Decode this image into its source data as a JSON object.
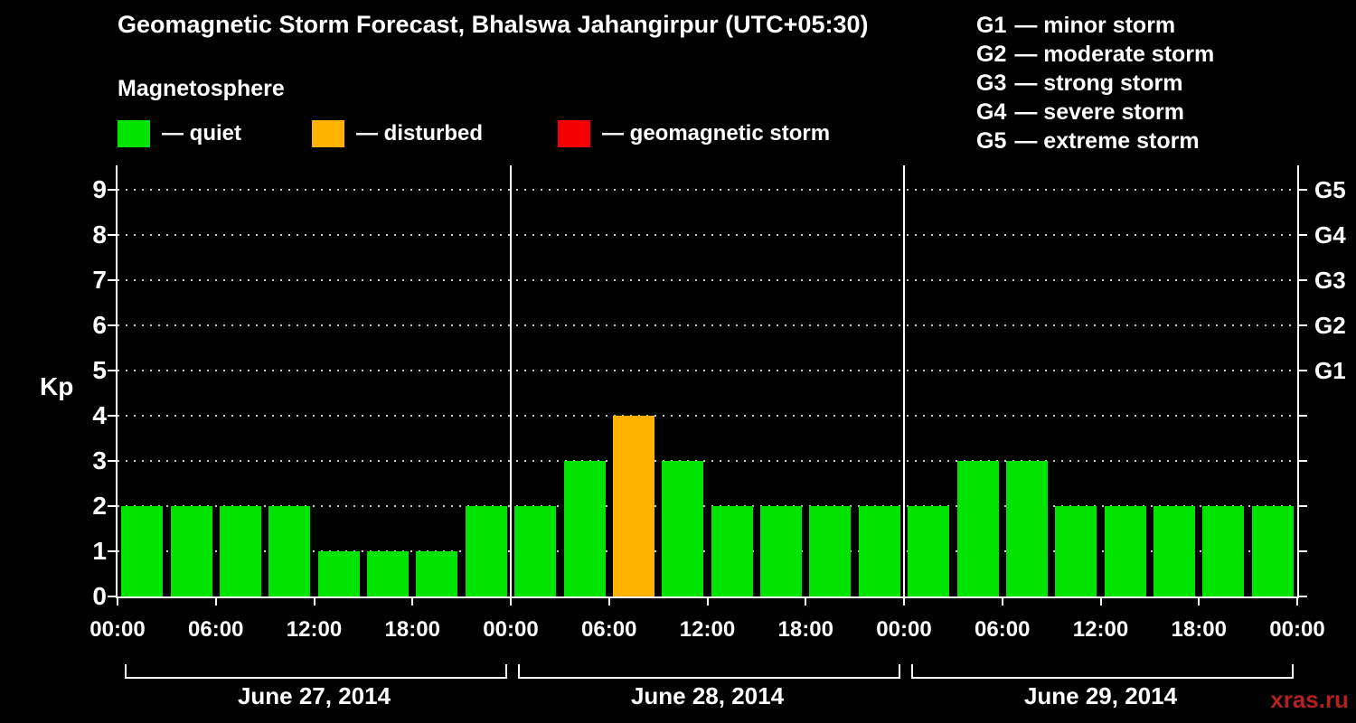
{
  "title": "Geomagnetic Storm Forecast, Bhalswa Jahangirpur (UTC+05:30)",
  "magnetosphere": {
    "heading": "Magnetosphere",
    "items": [
      {
        "name": "quiet",
        "label": "— quiet",
        "color": "#00e400"
      },
      {
        "name": "disturbed",
        "label": "— disturbed",
        "color": "#ffb300"
      },
      {
        "name": "storm",
        "label": "— geomagnetic storm",
        "color": "#f40000"
      }
    ]
  },
  "g_scale_legend": [
    {
      "code": "G1",
      "label": "— minor storm"
    },
    {
      "code": "G2",
      "label": "— moderate storm"
    },
    {
      "code": "G3",
      "label": "— strong storm"
    },
    {
      "code": "G4",
      "label": "— severe storm"
    },
    {
      "code": "G5",
      "label": "— extreme storm"
    }
  ],
  "watermark": "xras.ru",
  "colors": {
    "watermark": "#b22222",
    "axis": "#ffffff",
    "background": "#000000"
  },
  "chart_data": {
    "type": "bar",
    "title": "Geomagnetic Storm Forecast, Bhalswa Jahangirpur (UTC+05:30)",
    "ylabel": "Kp",
    "ylim": [
      0,
      9.5
    ],
    "yticks": [
      0,
      1,
      2,
      3,
      4,
      5,
      6,
      7,
      8,
      9
    ],
    "right_ticks": [
      {
        "value": 5,
        "label": "G1"
      },
      {
        "value": 6,
        "label": "G2"
      },
      {
        "value": 7,
        "label": "G3"
      },
      {
        "value": 8,
        "label": "G4"
      },
      {
        "value": 9,
        "label": "G5"
      }
    ],
    "grid": "dotted horizontal line at each Kp integer",
    "hours_per_bar": 3,
    "x_tick_hours": [
      "00:00",
      "06:00",
      "12:00",
      "18:00"
    ],
    "x_final_tick": "00:00",
    "colors": {
      "quiet": "#00e400",
      "disturbed": "#ffb300",
      "storm": "#f40000"
    },
    "color_rule": {
      "quiet": "Kp <= 3",
      "disturbed": "Kp = 4",
      "storm": "Kp >= 5"
    },
    "days": [
      {
        "date": "June 27, 2014",
        "values": [
          2,
          2,
          2,
          2,
          1,
          1,
          1,
          2
        ]
      },
      {
        "date": "June 28, 2014",
        "values": [
          2,
          3,
          4,
          3,
          2,
          2,
          2,
          2
        ]
      },
      {
        "date": "June 29, 2014",
        "values": [
          2,
          3,
          3,
          2,
          2,
          2,
          2,
          2
        ]
      }
    ]
  }
}
